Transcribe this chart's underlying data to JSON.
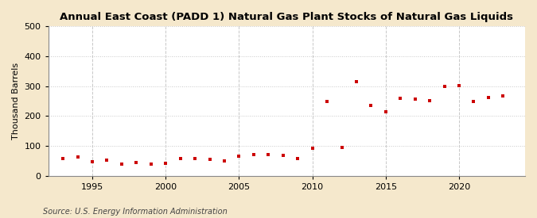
{
  "title": "Annual East Coast (PADD 1) Natural Gas Plant Stocks of Natural Gas Liquids",
  "ylabel": "Thousand Barrels",
  "source": "Source: U.S. Energy Information Administration",
  "background_color": "#f5e8cc",
  "plot_background_color": "#ffffff",
  "marker_color": "#cc0000",
  "grid_color": "#c8c8c8",
  "years": [
    1993,
    1994,
    1995,
    1996,
    1997,
    1998,
    1999,
    2000,
    2001,
    2002,
    2003,
    2004,
    2005,
    2006,
    2007,
    2008,
    2009,
    2010,
    2011,
    2012,
    2013,
    2014,
    2015,
    2016,
    2017,
    2018,
    2019,
    2020,
    2021,
    2022,
    2023
  ],
  "values": [
    58,
    62,
    47,
    52,
    40,
    45,
    38,
    42,
    57,
    57,
    55,
    50,
    65,
    70,
    70,
    67,
    58,
    93,
    250,
    95,
    315,
    235,
    213,
    260,
    258,
    252,
    298,
    303,
    248,
    262,
    268
  ],
  "ylim": [
    0,
    500
  ],
  "yticks": [
    0,
    100,
    200,
    300,
    400,
    500
  ],
  "xticks": [
    1995,
    2000,
    2005,
    2010,
    2015,
    2020
  ],
  "xlim": [
    1992.0,
    2024.5
  ]
}
